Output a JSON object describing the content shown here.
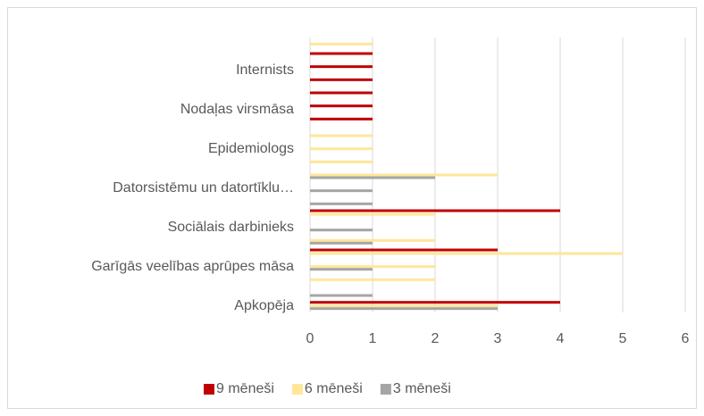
{
  "chart_data": {
    "type": "bar",
    "orientation": "horizontal",
    "categories": [
      "Apkopēja",
      null,
      null,
      "Garīgās veelības aprūpes māsa",
      null,
      null,
      "Sociālais darbinieks",
      null,
      null,
      "Datorsistēmu un datortīklu…",
      null,
      null,
      "Epidemiologs",
      null,
      null,
      "Nodaļas virsmāsa",
      null,
      null,
      "Internists",
      null,
      null
    ],
    "series": [
      {
        "name": "9 mēneši",
        "color": "#c00000",
        "values": [
          4,
          null,
          null,
          null,
          3,
          null,
          null,
          4,
          null,
          null,
          null,
          null,
          null,
          null,
          1,
          1,
          1,
          1,
          1,
          1,
          null
        ]
      },
      {
        "name": "6 mēneši",
        "color": "#ffe699",
        "values": [
          3,
          null,
          2,
          2,
          5,
          2,
          null,
          2,
          null,
          null,
          3,
          1,
          1,
          1,
          null,
          null,
          null,
          null,
          null,
          null,
          1
        ]
      },
      {
        "name": "3 mēneši",
        "color": "#a5a5a5",
        "values": [
          3,
          1,
          null,
          1,
          null,
          1,
          1,
          null,
          1,
          1,
          2,
          null,
          null,
          null,
          null,
          null,
          null,
          null,
          null,
          null,
          null
        ]
      }
    ],
    "xlim": [
      0,
      6
    ],
    "xticks": [
      0,
      1,
      2,
      3,
      4,
      5,
      6
    ],
    "grid": true,
    "legend": "bottom"
  }
}
